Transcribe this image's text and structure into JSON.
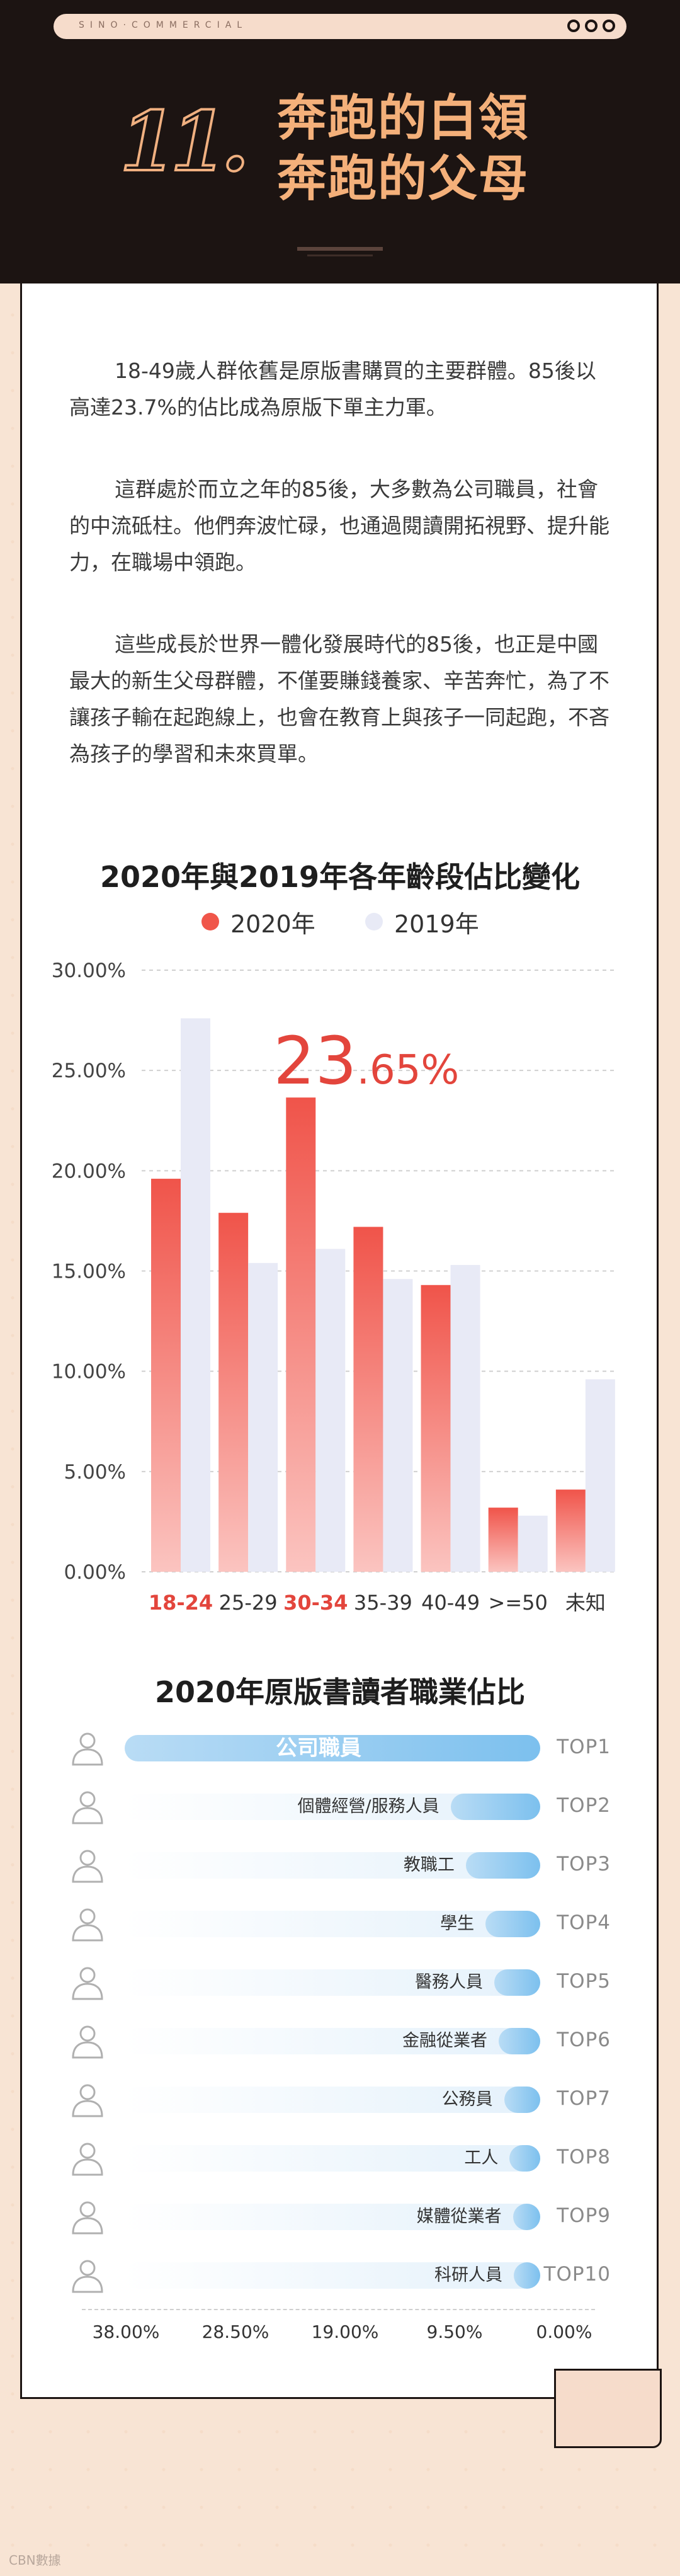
{
  "header": {
    "brand": "SINO·COMMERCIAL",
    "chapter_number": "11.",
    "title_line1": "奔跑的白領",
    "title_line2": "奔跑的父母"
  },
  "paragraphs": [
    "18-49歲人群依舊是原版書購買的主要群體。85後以高達23.7%的佔比成為原版下單主力軍。",
    "這群處於而立之年的85後，大多數為公司職員，社會的中流砥柱。他們奔波忙碌，也通過閱讀開拓視野、提升能力，在職場中領跑。",
    "這些成長於世界一體化發展時代的85後，也正是中國最大的新生父母群體，不僅要賺錢養家、辛苦奔忙，為了不讓孩子輸在起跑線上，也會在教育上與孩子一同起跑，不吝為孩子的學習和未來買單。"
  ],
  "chart_data": {
    "type": "bar",
    "title": "2020年與2019年各年齡段佔比變化",
    "categories": [
      "18-24",
      "25-29",
      "30-34",
      "35-39",
      "40-49",
      ">=50",
      "未知"
    ],
    "highlight_categories": [
      "18-24",
      "30-34"
    ],
    "series": [
      {
        "name": "2020年",
        "values": [
          19.6,
          17.9,
          23.65,
          17.2,
          14.3,
          3.2,
          4.1
        ],
        "color": "#f0564a"
      },
      {
        "name": "2019年",
        "values": [
          27.6,
          15.4,
          16.1,
          14.6,
          15.3,
          2.8,
          9.6
        ],
        "color": "#e8eaf6"
      }
    ],
    "ylim": [
      0,
      30
    ],
    "yticks": [
      "0.00%",
      "5.00%",
      "10.00%",
      "15.00%",
      "20.00%",
      "25.00%",
      "30.00%"
    ],
    "annotation": {
      "big": "23",
      "small": ".65%",
      "category": "30-34"
    },
    "highlight_color": "#e3453c",
    "grid": "horizontal-dashed",
    "legend": "top"
  },
  "occupations": {
    "title": "2020年原版書讀者職業佔比",
    "items": [
      {
        "label": "公司職員",
        "rank": "TOP1",
        "value": 38.0,
        "icon": "office-worker-icon"
      },
      {
        "label": "個體經營/服務人員",
        "rank": "TOP2",
        "value": 8.2,
        "icon": "service-staff-icon"
      },
      {
        "label": "教職工",
        "rank": "TOP3",
        "value": 6.8,
        "icon": "teacher-icon"
      },
      {
        "label": "學生",
        "rank": "TOP4",
        "value": 5.0,
        "icon": "student-icon"
      },
      {
        "label": "醫務人員",
        "rank": "TOP5",
        "value": 4.2,
        "icon": "medical-staff-icon"
      },
      {
        "label": "金融從業者",
        "rank": "TOP6",
        "value": 3.8,
        "icon": "finance-worker-icon"
      },
      {
        "label": "公務員",
        "rank": "TOP7",
        "value": 3.3,
        "icon": "civil-servant-icon"
      },
      {
        "label": "工人",
        "rank": "TOP8",
        "value": 2.8,
        "icon": "worker-icon"
      },
      {
        "label": "媒體從業者",
        "rank": "TOP9",
        "value": 2.5,
        "icon": "media-worker-icon"
      },
      {
        "label": "科研人員",
        "rank": "TOP10",
        "value": 2.2,
        "icon": "researcher-icon"
      }
    ],
    "axis_ticks": [
      "38.00%",
      "28.50%",
      "19.00%",
      "9.50%",
      "0.00%"
    ],
    "axis_max": 38.0
  },
  "watermark": "CBN數據"
}
